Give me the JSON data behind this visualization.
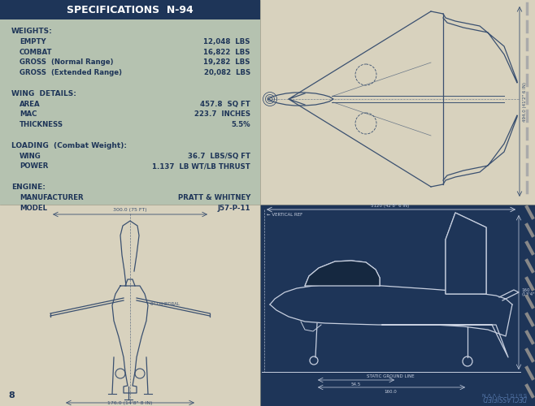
{
  "title": "SPECIFICATIONS  N-94",
  "title_bg": "#1e3558",
  "title_color": "#ffffff",
  "specs_bg": "#b5c2b0",
  "top_right_bg": "#d8d2be",
  "bottom_left_bg": "#d8d2be",
  "bottom_right_bg": "#1e3558",
  "page_bg": "#d8d2be",
  "text_color": "#1e3558",
  "draw_color_light": "#3a5070",
  "draw_color_dark": "#c8d0e0",
  "specs": [
    [
      "WEIGHTS:",
      ""
    ],
    [
      "    EMPTY",
      "12,048  LBS"
    ],
    [
      "    COMBAT",
      "16,822  LBS"
    ],
    [
      "    GROSS  (Normal Range)",
      "19,282  LBS"
    ],
    [
      "    GROSS  (Extended Range)",
      "20,082  LBS"
    ],
    [
      "",
      ""
    ],
    [
      "WING  DETAILS:",
      ""
    ],
    [
      "    AREA",
      "457.8  SQ FT"
    ],
    [
      "    MAC",
      "223.7  INCHES"
    ],
    [
      "    THICKNESS",
      "5.5%"
    ],
    [
      "",
      ""
    ],
    [
      "LOADING  (Combat Weight):",
      ""
    ],
    [
      "    WING",
      "36.7  LBS/SQ FT"
    ],
    [
      "    POWER",
      "1.137  LB WT/LB THRUST"
    ],
    [
      "",
      ""
    ],
    [
      "ENGINE:",
      ""
    ],
    [
      "    MANUFACTURER",
      "PRATT & WHITNEY"
    ],
    [
      "    MODEL",
      "J57-P-11"
    ]
  ],
  "page_number": "8"
}
